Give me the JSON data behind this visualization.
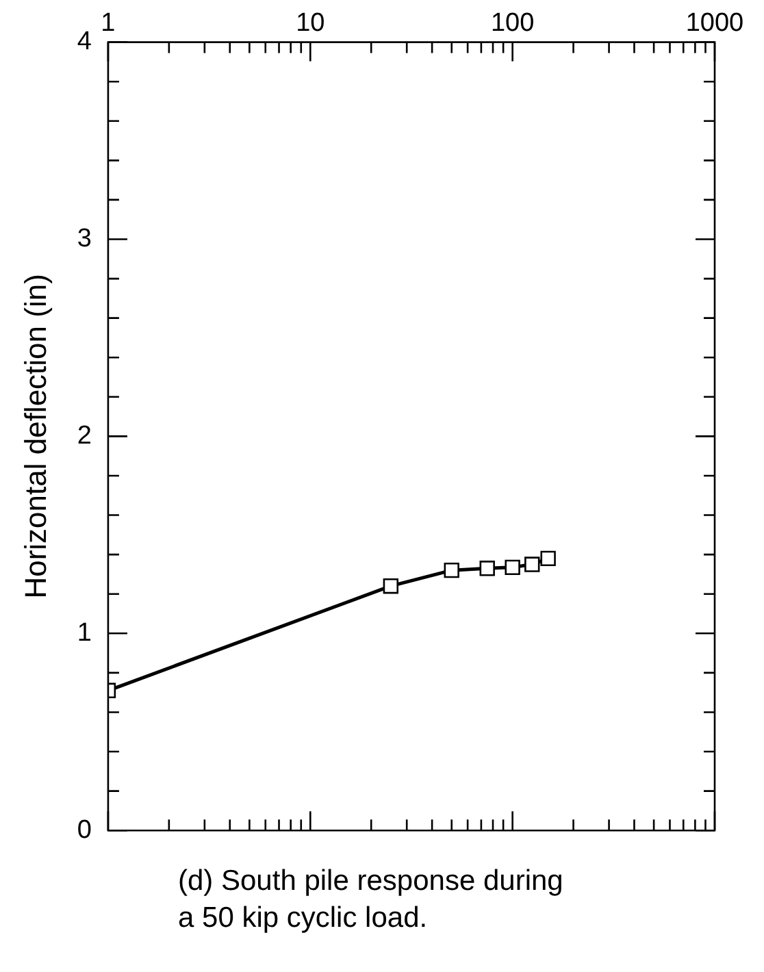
{
  "chart_data": {
    "type": "line",
    "ylabel": "Horizontal deflection (in)",
    "annotations": [
      "(d) South pile response during\na 50 kip cyclic load."
    ],
    "x": [
      1,
      25,
      50,
      75,
      100,
      125,
      150
    ],
    "series": [
      {
        "color": "#000000",
        "values": [
          0.71,
          1.24,
          1.32,
          1.33,
          1.335,
          1.35,
          1.38
        ]
      }
    ],
    "log": "x",
    "xlim": [
      1,
      1000
    ],
    "ylim": [
      0,
      4
    ],
    "xticks": [
      1,
      {
        "value": 2,
        "label": null
      },
      {
        "value": 3,
        "label": null
      },
      {
        "value": 4,
        "label": null
      },
      {
        "value": 5,
        "label": null
      },
      {
        "value": 6,
        "label": null
      },
      {
        "value": 7,
        "label": null
      },
      {
        "value": 8,
        "label": null
      },
      {
        "value": 9,
        "label": null
      },
      10,
      {
        "value": 20,
        "label": null
      },
      {
        "value": 30,
        "label": null
      },
      {
        "value": 40,
        "label": null
      },
      {
        "value": 50,
        "label": null
      },
      {
        "value": 60,
        "label": null
      },
      {
        "value": 70,
        "label": null
      },
      {
        "value": 80,
        "label": null
      },
      {
        "value": 90,
        "label": null
      },
      100,
      {
        "value": 200,
        "label": null
      },
      {
        "value": 300,
        "label": null
      },
      {
        "value": 400,
        "label": null
      },
      {
        "value": 500,
        "label": null
      },
      {
        "value": 600,
        "label": null
      },
      {
        "value": 700,
        "label": null
      },
      {
        "value": 800,
        "label": null
      },
      {
        "value": 900,
        "label": null
      },
      1000
    ],
    "yticks": [
      0,
      {
        "value": 0.2,
        "label": null
      },
      {
        "value": 0.4,
        "label": null
      },
      {
        "value": 0.6,
        "label": null
      },
      {
        "value": 0.8,
        "label": null
      },
      1,
      {
        "value": 1.2,
        "label": null
      },
      {
        "value": 1.4,
        "label": null
      },
      {
        "value": 1.6,
        "label": null
      },
      {
        "value": 1.8,
        "label": null
      },
      2,
      {
        "value": 2.2,
        "label": null
      },
      {
        "value": 2.4,
        "label": null
      },
      {
        "value": 2.6,
        "label": null
      },
      {
        "value": 2.8,
        "label": null
      },
      3,
      {
        "value": 3.2,
        "label": null
      },
      {
        "value": 3.4,
        "label": null
      },
      {
        "value": 3.6,
        "label": null
      },
      {
        "value": 3.8,
        "label": null
      },
      4
    ],
    "grid": false,
    "legend": false,
    "marker": "square",
    "line_style": "solid"
  }
}
